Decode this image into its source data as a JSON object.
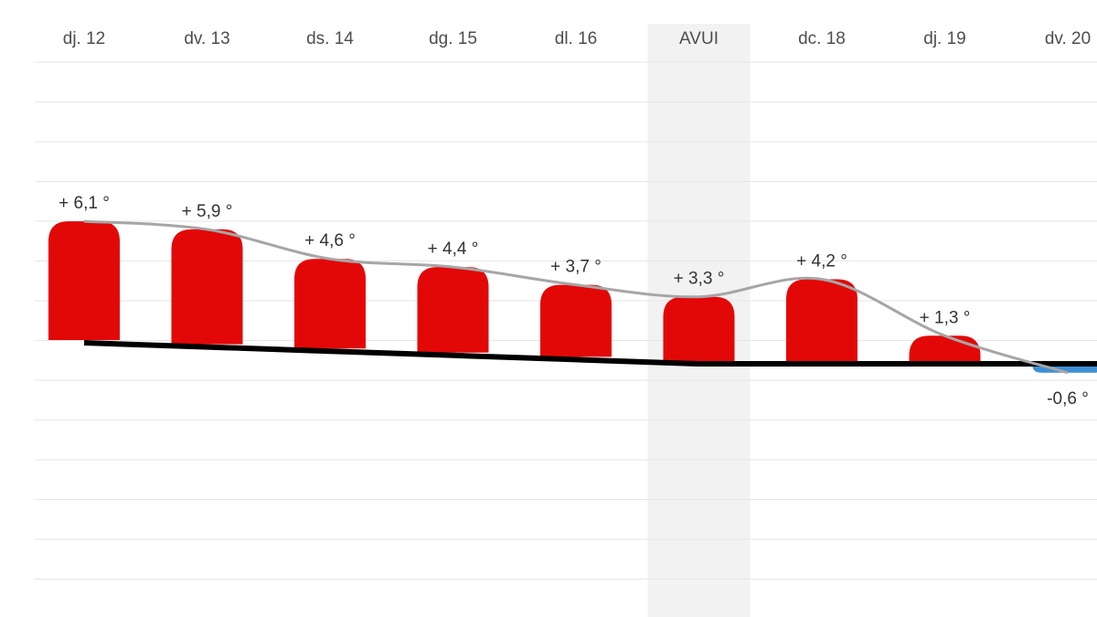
{
  "chart_data": {
    "type": "bar",
    "categories": [
      "dj. 12",
      "dv. 13",
      "ds. 14",
      "dg. 15",
      "dl. 16",
      "AVUI",
      "dc. 18",
      "dj. 19",
      "dv. 20"
    ],
    "values": [
      6.1,
      5.9,
      4.6,
      4.4,
      3.7,
      3.3,
      4.2,
      1.3,
      -0.6
    ],
    "value_labels": [
      "+ 6,1 °",
      "+ 5,9 °",
      "+ 4,6 °",
      "+ 4,4 °",
      "+ 3,7 °",
      "+ 3,3 °",
      "+ 4,2 °",
      "+ 1,3 °",
      "-0,6 °"
    ],
    "highlight_category": "AVUI",
    "title": "",
    "xlabel": "",
    "ylabel": "",
    "grid": true,
    "colors": {
      "positive_bar": "#e30808",
      "negative_bar": "#3d8fd6",
      "trend_line": "#a6a6a6",
      "baseline": "#000000",
      "highlight_band": "#f2f2f2",
      "gridline": "#e6e6e6"
    }
  }
}
